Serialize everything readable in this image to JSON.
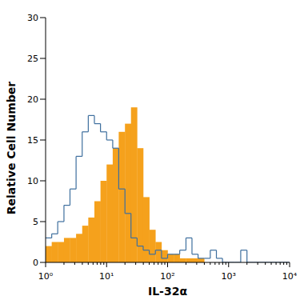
{
  "chart_data": {
    "type": "histogram",
    "xlabel": "IL-32α",
    "ylabel": "Relative Cell Number",
    "log": "x",
    "bins": [
      1,
      1.26,
      1.58,
      2,
      2.51,
      3.16,
      3.98,
      5.01,
      6.31,
      7.94,
      10,
      12.6,
      15.8,
      20,
      25.1,
      31.6,
      39.8,
      50.1,
      63.1,
      79.4,
      100,
      126,
      158,
      200,
      251,
      316,
      398,
      501,
      631,
      794,
      1000,
      1260,
      1580,
      2000,
      2510,
      3160,
      3980,
      5010,
      6310,
      7940,
      10000
    ],
    "series": [
      {
        "type": "bar",
        "color": "#f5a11c",
        "values": [
          2,
          2.5,
          2.5,
          3,
          3,
          3.5,
          4.5,
          5.5,
          7.5,
          10,
          12,
          14,
          16,
          17,
          19,
          14,
          8,
          4,
          2.5,
          1.5,
          1,
          1,
          0.5,
          0.5,
          0.5,
          0.5,
          0,
          0,
          0,
          0,
          0,
          0,
          0,
          0,
          0,
          0,
          0,
          0,
          0,
          0
        ]
      },
      {
        "type": "step",
        "color": "#3e6f9e",
        "values": [
          3,
          3.5,
          5,
          7,
          9,
          13,
          16,
          18,
          17,
          16,
          15,
          14,
          9,
          6,
          3,
          2,
          1.5,
          1,
          1.5,
          0.5,
          1,
          1,
          1.5,
          3,
          1,
          0.5,
          0.5,
          1.5,
          0.5,
          0,
          0,
          0,
          1.5,
          0,
          0,
          0,
          0,
          0,
          0,
          0
        ]
      }
    ],
    "xlim": [
      1,
      10000
    ],
    "xticks": [
      {
        "value": 1,
        "label": "10⁰"
      },
      {
        "value": 10,
        "label": "10¹"
      },
      {
        "value": 100,
        "label": "10²"
      },
      {
        "value": 1000,
        "label": "10³"
      },
      {
        "value": 10000,
        "label": "10⁴"
      }
    ],
    "ylim": [
      0,
      30
    ],
    "yticks": [
      0,
      5,
      10,
      15,
      20,
      25,
      30
    ]
  }
}
